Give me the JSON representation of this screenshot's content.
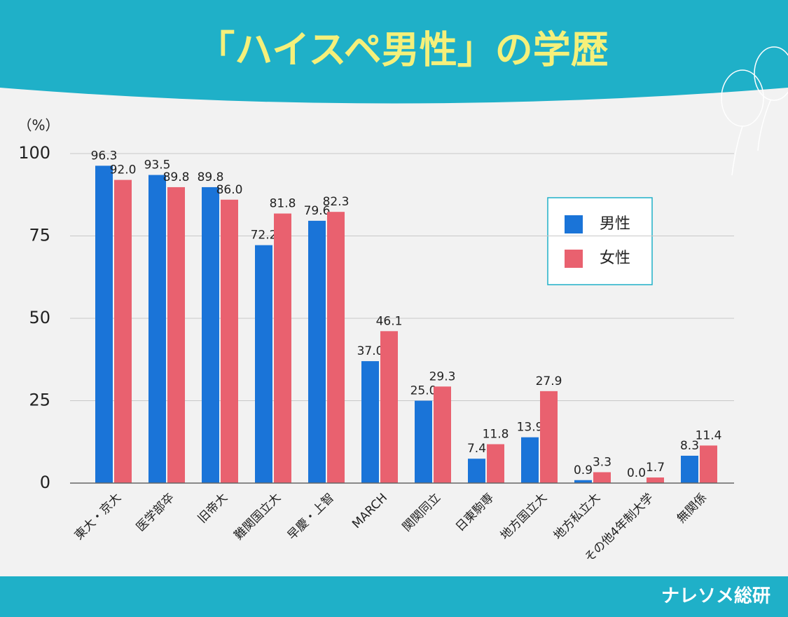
{
  "chart_data": {
    "type": "bar",
    "title": "「ハイスペ男性」の学歴",
    "y_label": "（%）",
    "brand": "ナレソメ総研",
    "categories": [
      "東大・京大",
      "医学部卒",
      "旧帝大",
      "難関国立大",
      "早慶・上智",
      "MARCH",
      "関関同立",
      "日東駒専",
      "地方国立大",
      "地方私立大",
      "その他4年制大学",
      "無関係"
    ],
    "series": [
      {
        "name": "男性",
        "color": "#1a74d8",
        "values": [
          96.3,
          93.5,
          89.8,
          72.2,
          79.6,
          37.0,
          25.0,
          7.4,
          13.9,
          0.9,
          0.0,
          8.3
        ],
        "value_labels": [
          "96.3",
          "93.5",
          "89.8",
          "72.2",
          "79.6",
          "37.0",
          "25.0",
          "7.4",
          "13.9",
          "0.9",
          "0.0",
          "8.3"
        ]
      },
      {
        "name": "女性",
        "color": "#e9616f",
        "values": [
          92.0,
          89.8,
          86.0,
          81.8,
          82.3,
          46.1,
          29.3,
          11.8,
          27.9,
          3.3,
          1.7,
          11.4
        ],
        "value_labels": [
          "92.0",
          "89.8",
          "86.0",
          "81.8",
          "82.3",
          "46.1",
          "29.3",
          "11.8",
          "27.9",
          "3.3",
          "1.7",
          "11.4"
        ]
      }
    ],
    "ylim": [
      0,
      100
    ],
    "yticks": [
      0,
      25,
      50,
      75,
      100
    ],
    "grid": true,
    "legend": "upper right"
  }
}
